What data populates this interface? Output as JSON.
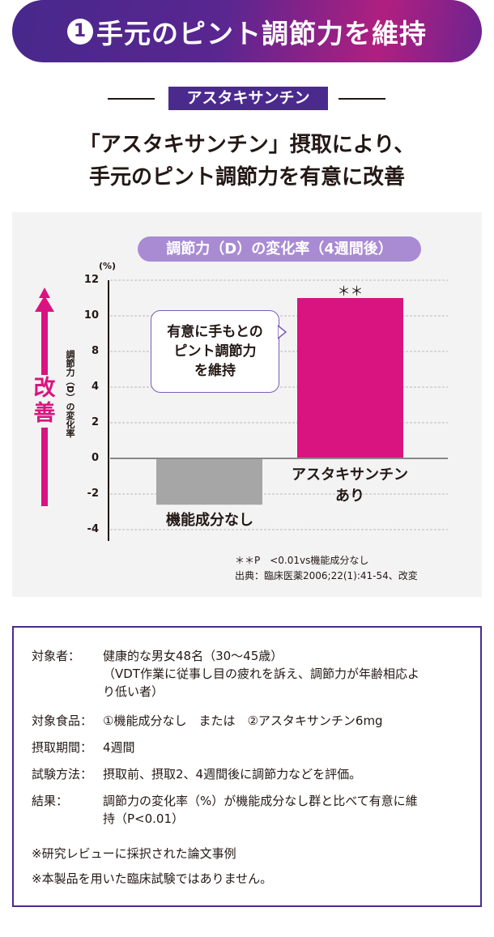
{
  "header": {
    "number": "1",
    "title": "手元のピント調節力を維持"
  },
  "tag": "アスタキサンチン",
  "headline": [
    "「アスタキサンチン」摂取により、",
    "手元のピント調節力を有意に改善"
  ],
  "chart_data": {
    "type": "bar",
    "title": "調節力（D）の変化率（4週間後）",
    "ylabel": "調節力（D）の変化率",
    "unit": "(%)",
    "yticks": [
      "12",
      "10",
      "8",
      "4",
      "2",
      "0",
      "-2",
      "-4"
    ],
    "ylim": [
      -4,
      12
    ],
    "grid": true,
    "categories": [
      "機能成分なし",
      "アスタキサンチンあり"
    ],
    "category_lines": [
      [
        "機能成分なし"
      ],
      [
        "アスタキサンチン",
        "あり"
      ]
    ],
    "values": [
      -2.6,
      11.0
    ],
    "colors": [
      "#a6a6a6",
      "#d91480"
    ],
    "significance": "＊＊",
    "callout": [
      "有意に手もとの",
      "ピント調節力",
      "を維持"
    ],
    "arrow_label": "改善",
    "footnotes": [
      "＊＊P　<0.01vs機能成分なし",
      "出典：臨床医薬2006;22(1):41-54、改変"
    ]
  },
  "info": {
    "rows": [
      {
        "label": "対象者：",
        "lines": [
          "健康的な男女48名（30〜45歳）",
          "（VDT作業に従事し目の疲れを訴え、調節力が年齢相応よ",
          "り低い者）"
        ]
      },
      {
        "label": "対象食品：",
        "lines": [
          "①機能成分なし　または　②アスタキサンチン6mg"
        ]
      },
      {
        "label": "摂取期間：",
        "lines": [
          "4週間"
        ]
      },
      {
        "label": "試験方法：",
        "lines": [
          "摂取前、摂取2、4週間後に調節力などを評価。"
        ]
      },
      {
        "label": "結果：",
        "lines": [
          "調節力の変化率（%）が機能成分なし群と比べて有意に維",
          "持（P<0.01）"
        ]
      }
    ],
    "notes": [
      "※研究レビューに採択された論文事例",
      "※本製品を用いた臨床試験ではありません。"
    ]
  },
  "colors": {
    "purple": "#4b2a8e",
    "magenta": "#d91480",
    "lavender": "#a98bd3"
  }
}
